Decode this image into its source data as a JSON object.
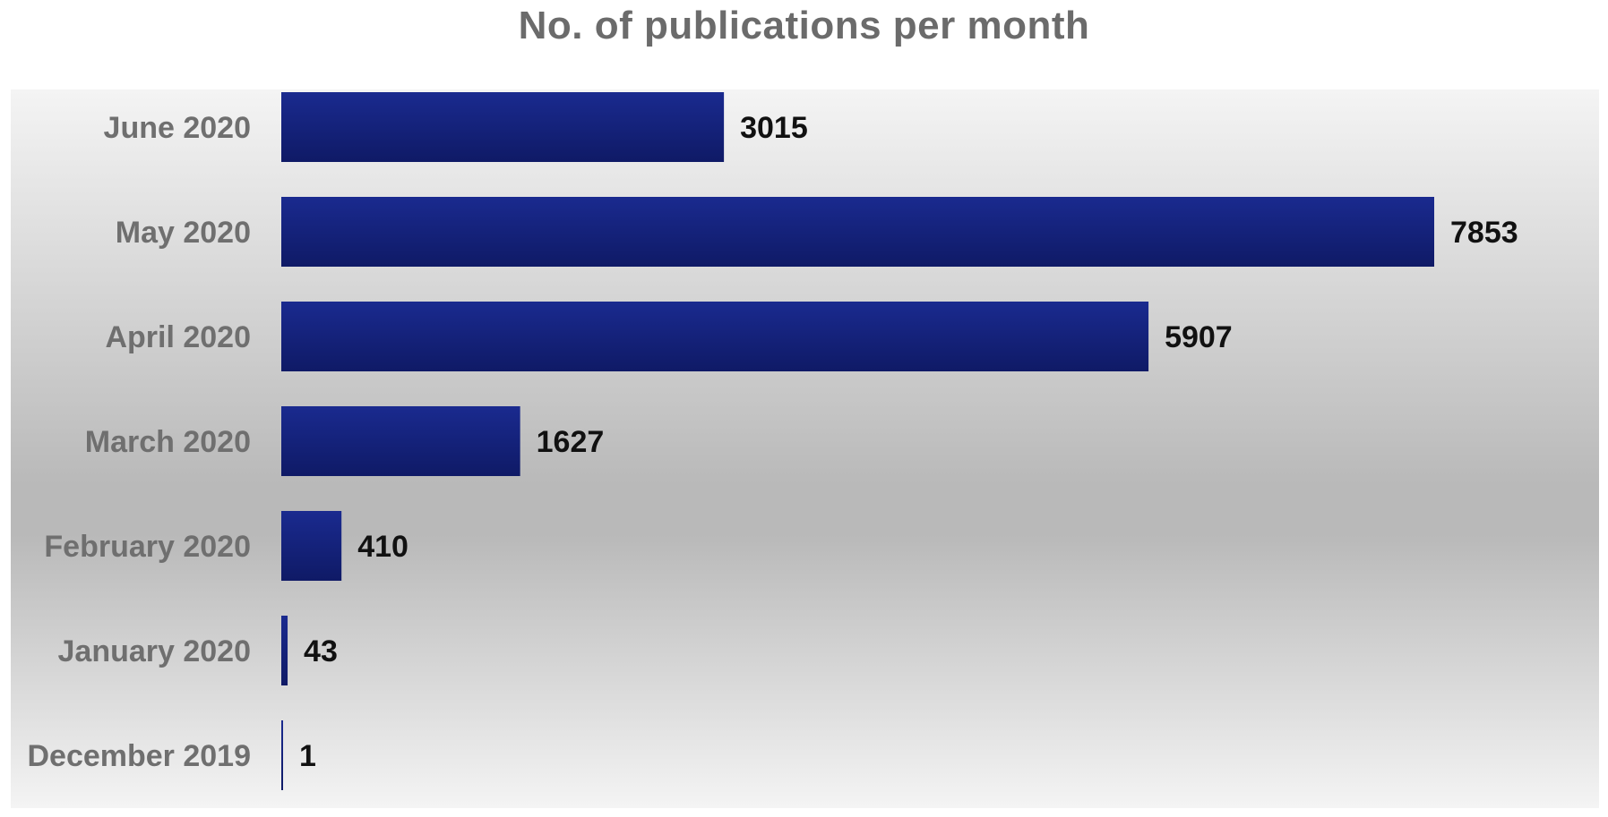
{
  "chart_data": {
    "type": "bar",
    "orientation": "horizontal",
    "title": "No. of publications per month",
    "categories": [
      "June 2020",
      "May 2020",
      "April 2020",
      "March 2020",
      "February 2020",
      "January 2020",
      "December 2019"
    ],
    "values": [
      3015,
      7853,
      5907,
      1627,
      410,
      43,
      1
    ],
    "data_labels": [
      "3015",
      "7853",
      "5907",
      "1627",
      "410",
      "43",
      "1"
    ],
    "xlabel": "",
    "ylabel": "",
    "xlim": [
      0,
      7853
    ],
    "grid": false,
    "legend": "none",
    "colors": {
      "bar_top": "#1a2a8f",
      "bar_bottom": "#0f1a66",
      "background_light": "#f4f4f4",
      "background_dark": "#b9b9b9",
      "category_text": "#6f6f6f",
      "value_text": "#111111",
      "title_text": "#6b6b6b"
    }
  }
}
